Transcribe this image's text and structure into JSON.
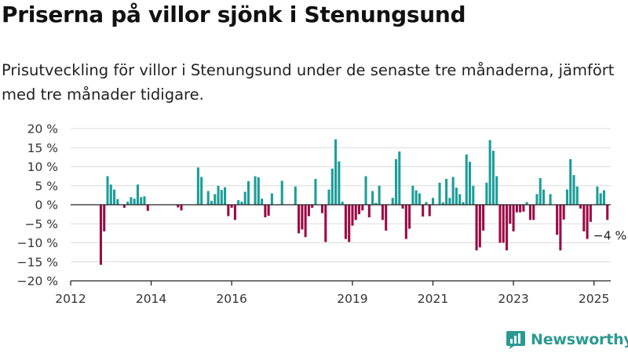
{
  "header": {
    "title": "Priserna på villor sjönk i Stenungsund",
    "subtitle": "Prisutveckling för villor i Stenungsund under de senaste tre månaderna, jämfört med tre månader tidigare."
  },
  "brand": {
    "name": "Newsworthy",
    "icon": "newsworthy-logo-icon",
    "color": "#2a9a90"
  },
  "chart_data": {
    "type": "bar",
    "x_axis": {
      "start": "2012-01",
      "end": "2025-06",
      "ticks": [
        "2012",
        "2014",
        "2016",
        "2019",
        "2021",
        "2023",
        "2025"
      ]
    },
    "y_axis": {
      "ylim": [
        -20,
        20
      ],
      "ticks": [
        20,
        15,
        10,
        5,
        0,
        -5,
        -10,
        -15,
        -20
      ],
      "tick_labels": [
        "20 %",
        "15 %",
        "10 %",
        "5 %",
        "0 %",
        "−5 %",
        "−10 %",
        "−15 %",
        "−20 %"
      ]
    },
    "grid": true,
    "colors": {
      "positive": "#1c9e99",
      "negative": "#9c0a45"
    },
    "annotation": "−4 %",
    "series": [
      {
        "points": [
          [
            "2012-10",
            -15.8
          ],
          [
            "2012-11",
            -7
          ],
          [
            "2012-12",
            7.5
          ],
          [
            "2013-01",
            5.3
          ],
          [
            "2013-02",
            4
          ],
          [
            "2013-03",
            1.5
          ],
          [
            "2013-05",
            -0.8
          ],
          [
            "2013-06",
            0.8
          ],
          [
            "2013-07",
            2
          ],
          [
            "2013-08",
            1.6
          ],
          [
            "2013-09",
            5.3
          ],
          [
            "2013-10",
            2
          ],
          [
            "2013-11",
            2.2
          ],
          [
            "2013-12",
            -1.6
          ],
          [
            "2014-09",
            -0.7
          ],
          [
            "2014-10",
            -1.5
          ],
          [
            "2015-03",
            9.8
          ],
          [
            "2015-04",
            7.3
          ],
          [
            "2015-06",
            3.6
          ],
          [
            "2015-07",
            1
          ],
          [
            "2015-08",
            2.8
          ],
          [
            "2015-09",
            5
          ],
          [
            "2015-10",
            3.9
          ],
          [
            "2015-11",
            4.6
          ],
          [
            "2015-12",
            -3
          ],
          [
            "2016-01",
            -0.8
          ],
          [
            "2016-02",
            -4
          ],
          [
            "2016-03",
            1.2
          ],
          [
            "2016-04",
            0.8
          ],
          [
            "2016-05",
            3.4
          ],
          [
            "2016-06",
            6.2
          ],
          [
            "2016-08",
            7.5
          ],
          [
            "2016-09",
            7.2
          ],
          [
            "2016-10",
            1.6
          ],
          [
            "2016-11",
            -3.3
          ],
          [
            "2016-12",
            -2.9
          ],
          [
            "2017-01",
            3
          ],
          [
            "2017-04",
            6.3
          ],
          [
            "2017-08",
            4.8
          ],
          [
            "2017-09",
            -7.5
          ],
          [
            "2017-10",
            -6.5
          ],
          [
            "2017-11",
            -8.5
          ],
          [
            "2017-12",
            -3
          ],
          [
            "2018-01",
            -0.8
          ],
          [
            "2018-02",
            6.8
          ],
          [
            "2018-04",
            -2.2
          ],
          [
            "2018-05",
            -9.8
          ],
          [
            "2018-06",
            4
          ],
          [
            "2018-07",
            9.5
          ],
          [
            "2018-08",
            17.2
          ],
          [
            "2018-09",
            11.4
          ],
          [
            "2018-10",
            0.8
          ],
          [
            "2018-11",
            -9
          ],
          [
            "2018-12",
            -9.8
          ],
          [
            "2019-01",
            -5.5
          ],
          [
            "2019-02",
            -4
          ],
          [
            "2019-03",
            -2.5
          ],
          [
            "2019-04",
            -1.5
          ],
          [
            "2019-05",
            7.5
          ],
          [
            "2019-06",
            -3.3
          ],
          [
            "2019-07",
            3.6
          ],
          [
            "2019-08",
            0.5
          ],
          [
            "2019-09",
            5
          ],
          [
            "2019-10",
            -4
          ],
          [
            "2019-11",
            -6.8
          ],
          [
            "2020-01",
            1.8
          ],
          [
            "2020-02",
            12
          ],
          [
            "2020-03",
            14
          ],
          [
            "2020-04",
            -1
          ],
          [
            "2020-05",
            -9
          ],
          [
            "2020-06",
            -6.3
          ],
          [
            "2020-07",
            5
          ],
          [
            "2020-08",
            3.8
          ],
          [
            "2020-09",
            3
          ],
          [
            "2020-10",
            -3.1
          ],
          [
            "2020-11",
            0.7
          ],
          [
            "2020-12",
            -3
          ],
          [
            "2021-01",
            1.8
          ],
          [
            "2021-03",
            5.8
          ],
          [
            "2021-04",
            0.6
          ],
          [
            "2021-05",
            6.8
          ],
          [
            "2021-06",
            1.8
          ],
          [
            "2021-07",
            7.3
          ],
          [
            "2021-08",
            4.5
          ],
          [
            "2021-09",
            2.8
          ],
          [
            "2021-10",
            0.7
          ],
          [
            "2021-11",
            13.2
          ],
          [
            "2021-12",
            11.3
          ],
          [
            "2022-01",
            5
          ],
          [
            "2022-02",
            -12
          ],
          [
            "2022-03",
            -11.2
          ],
          [
            "2022-04",
            -6.8
          ],
          [
            "2022-05",
            5.8
          ],
          [
            "2022-06",
            17
          ],
          [
            "2022-07",
            14.2
          ],
          [
            "2022-08",
            7.5
          ],
          [
            "2022-09",
            -10
          ],
          [
            "2022-10",
            -10
          ],
          [
            "2022-11",
            -12
          ],
          [
            "2022-12",
            -5
          ],
          [
            "2023-01",
            -7
          ],
          [
            "2023-02",
            -2
          ],
          [
            "2023-03",
            -2
          ],
          [
            "2023-04",
            -1.8
          ],
          [
            "2023-05",
            0.7
          ],
          [
            "2023-06",
            -4
          ],
          [
            "2023-07",
            -4
          ],
          [
            "2023-08",
            2.8
          ],
          [
            "2023-09",
            7
          ],
          [
            "2023-10",
            4
          ],
          [
            "2023-12",
            2.8
          ],
          [
            "2024-02",
            -7.9
          ],
          [
            "2024-03",
            -12
          ],
          [
            "2024-04",
            -3.9
          ],
          [
            "2024-05",
            4
          ],
          [
            "2024-06",
            12
          ],
          [
            "2024-07",
            7.8
          ],
          [
            "2024-08",
            4.8
          ],
          [
            "2024-09",
            -1
          ],
          [
            "2024-10",
            -7
          ],
          [
            "2024-11",
            -9
          ],
          [
            "2024-12",
            -4.5
          ],
          [
            "2025-02",
            4.8
          ],
          [
            "2025-03",
            3
          ],
          [
            "2025-04",
            3.8
          ],
          [
            "2025-05",
            -4
          ]
        ]
      }
    ]
  }
}
